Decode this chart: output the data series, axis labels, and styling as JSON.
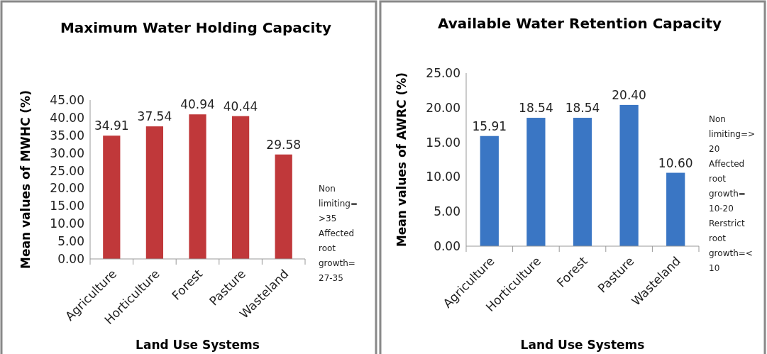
{
  "chart_data": [
    {
      "type": "bar",
      "title": "Maximum Water Holding Capacity",
      "xlabel": "Land Use Systems",
      "ylabel": "Mean values of MWHC (%)",
      "categories": [
        "Agriculture",
        "Horticulture",
        "Forest",
        "Pasture",
        "Wasteland"
      ],
      "values": [
        34.91,
        37.54,
        40.94,
        40.44,
        29.58
      ],
      "color": "#c0383a",
      "ylim": [
        0,
        45
      ],
      "yticks": [
        {
          "value": 0,
          "label": "0.00"
        },
        {
          "value": 5,
          "label": "5.00"
        },
        {
          "value": 10,
          "label": "10.00"
        },
        {
          "value": 15,
          "label": "15.00"
        },
        {
          "value": 20,
          "label": "20.00"
        },
        {
          "value": 25,
          "label": "25.00"
        },
        {
          "value": 30,
          "label": "30.00"
        },
        {
          "value": 35,
          "label": "35.00"
        },
        {
          "value": 40,
          "label": "40.00"
        },
        {
          "value": 45,
          "label": "45.00"
        }
      ],
      "value_labels": [
        "34.91",
        "37.54",
        "40.94",
        "40.44",
        "29.58"
      ],
      "annotations": [
        "Non\nlimiting=\n>35\nAffected\nroot\ngrowth=\n27-35"
      ]
    },
    {
      "type": "bar",
      "title": "Available Water Retention Capacity",
      "xlabel": "Land Use Systems",
      "ylabel": "Mean values of AWRC (%)",
      "categories": [
        "Agriculture",
        "Horticulture",
        "Forest",
        "Pasture",
        "Wasteland"
      ],
      "values": [
        15.91,
        18.54,
        18.54,
        20.4,
        10.6
      ],
      "color": "#3a76c4",
      "ylim": [
        0,
        25
      ],
      "yticks": [
        {
          "value": 0,
          "label": "0.00"
        },
        {
          "value": 5,
          "label": "5.00"
        },
        {
          "value": 10,
          "label": "10.00"
        },
        {
          "value": 15,
          "label": "15.00"
        },
        {
          "value": 20,
          "label": "20.00"
        },
        {
          "value": 25,
          "label": "25.00"
        }
      ],
      "value_labels": [
        "15.91",
        "18.54",
        "18.54",
        "20.40",
        "10.60"
      ],
      "annotations": [
        "Non\nlimiting=>\n20\nAffected\nroot\ngrowth=\n10-20\nRerstrict\nroot\ngrowth=<\n10"
      ]
    }
  ]
}
